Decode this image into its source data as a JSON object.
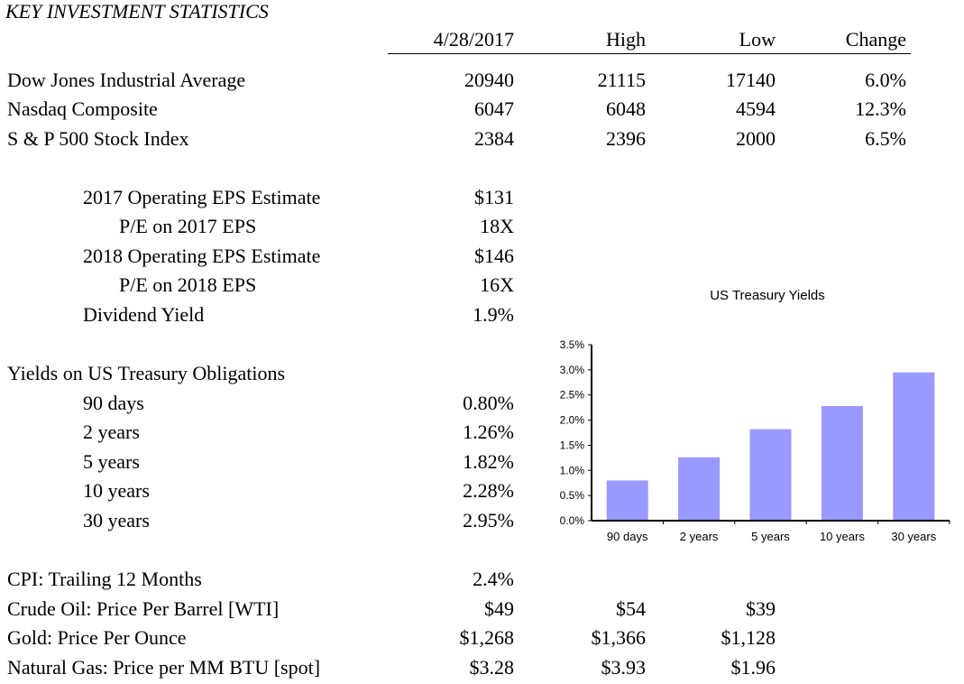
{
  "title": "KEY INVESTMENT STATISTICS",
  "headers": {
    "date": "4/28/2017",
    "high": "High",
    "low": "Low",
    "change": "Change"
  },
  "indices": [
    {
      "label": "Dow Jones Industrial Average",
      "value": "20940",
      "high": "21115",
      "low": "17140",
      "change": "6.0%"
    },
    {
      "label": "Nasdaq Composite",
      "value": "6047",
      "high": "6048",
      "low": "4594",
      "change": "12.3%"
    },
    {
      "label": "S & P 500 Stock Index",
      "value": "2384",
      "high": "2396",
      "low": "2000",
      "change": "6.5%"
    }
  ],
  "eps": [
    {
      "label": "2017 Operating EPS Estimate",
      "value": "$131"
    },
    {
      "label": "P/E on 2017 EPS",
      "value": "18X"
    },
    {
      "label": "2018 Operating EPS Estimate",
      "value": "$146"
    },
    {
      "label": "P/E on 2018 EPS",
      "value": "16X"
    },
    {
      "label": "Dividend Yield",
      "value": "1.9%"
    }
  ],
  "treasury": {
    "heading": "Yields on US Treasury Obligations",
    "rows": [
      {
        "label": "90 days",
        "value": "0.80%"
      },
      {
        "label": "2 years",
        "value": "1.26%"
      },
      {
        "label": "5 years",
        "value": "1.82%"
      },
      {
        "label": "10 years",
        "value": "2.28%"
      },
      {
        "label": "30 years",
        "value": "2.95%"
      }
    ]
  },
  "commodities": [
    {
      "label": "CPI: Trailing 12 Months",
      "value": "2.4%",
      "high": "",
      "low": ""
    },
    {
      "label": "Crude Oil:  Price Per Barrel [WTI]",
      "value": "$49",
      "high": "$54",
      "low": "$39"
    },
    {
      "label": "Gold:  Price Per Ounce",
      "value": "$1,268",
      "high": "$1,366",
      "low": "$1,128"
    },
    {
      "label": "Natural Gas: Price per MM BTU [spot]",
      "value": "$3.28",
      "high": "$3.93",
      "low": "$1.96"
    }
  ],
  "chart_data": {
    "type": "bar",
    "title": "US Treasury Yields",
    "categories": [
      "90 days",
      "2 years",
      "5 years",
      "10 years",
      "30 years"
    ],
    "values": [
      0.8,
      1.26,
      1.82,
      2.28,
      2.95
    ],
    "ylim": [
      0,
      3.5
    ],
    "yticks": [
      "0.0%",
      "0.5%",
      "1.0%",
      "1.5%",
      "2.0%",
      "2.5%",
      "3.0%",
      "3.5%"
    ],
    "grid": false,
    "bar_color": "#9999ff"
  }
}
